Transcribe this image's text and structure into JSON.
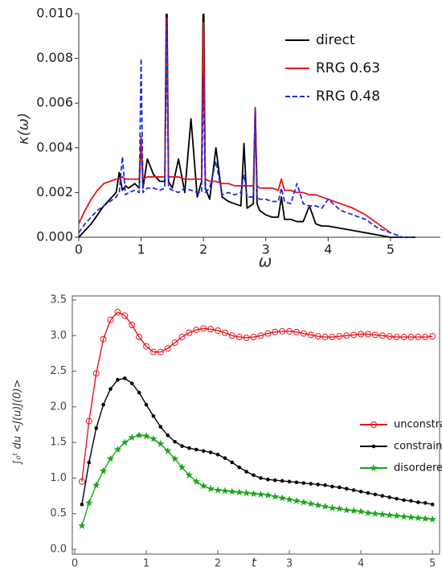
{
  "chart_data": [
    {
      "type": "line",
      "x_label": "ω",
      "y_label": "κ(ω)",
      "xlim": [
        0,
        5.8
      ],
      "ylim": [
        0,
        0.01
      ],
      "xticks": [
        0,
        1,
        2,
        3,
        4,
        5
      ],
      "yticks": [
        {
          "value": 0,
          "label": "0.000"
        },
        {
          "value": 0.002,
          "label": "0.002"
        },
        {
          "value": 0.004,
          "label": "0.004"
        },
        {
          "value": 0.006,
          "label": "0.006"
        },
        {
          "value": 0.008,
          "label": "0.008"
        },
        {
          "value": 0.01,
          "label": "0.010"
        }
      ],
      "frame": false,
      "legend": "top-right",
      "x": [
        0,
        0.1,
        0.2,
        0.3,
        0.4,
        0.5,
        0.6,
        0.65,
        0.7,
        0.75,
        0.8,
        0.9,
        0.97,
        1.0,
        1.03,
        1.1,
        1.2,
        1.3,
        1.38,
        1.41,
        1.44,
        1.5,
        1.6,
        1.7,
        1.8,
        1.9,
        1.97,
        2.0,
        2.03,
        2.1,
        2.2,
        2.3,
        2.4,
        2.5,
        2.6,
        2.65,
        2.7,
        2.8,
        2.83,
        2.86,
        2.9,
        3.0,
        3.1,
        3.2,
        3.25,
        3.3,
        3.4,
        3.5,
        3.6,
        3.7,
        3.8,
        3.9,
        4.0,
        4.2,
        4.4,
        4.6,
        4.8,
        5.0,
        5.2,
        5.4
      ],
      "series": [
        {
          "name": "direct",
          "color": "#000000",
          "dash": false,
          "values": [
            0,
            0.0003,
            0.0006,
            0.001,
            0.0014,
            0.0017,
            0.002,
            0.0029,
            0.0021,
            0.0023,
            0.0022,
            0.0024,
            0.0022,
            0.0045,
            0.0022,
            0.0035,
            0.0028,
            0.0025,
            0.0025,
            0.012,
            0.0025,
            0.0022,
            0.0035,
            0.002,
            0.0053,
            0.0018,
            0.0025,
            0.012,
            0.0022,
            0.0017,
            0.004,
            0.0018,
            0.0016,
            0.0015,
            0.0014,
            0.0042,
            0.0013,
            0.0015,
            0.0058,
            0.0015,
            0.0012,
            0.001,
            0.0009,
            0.0009,
            0.0018,
            0.0008,
            0.0008,
            0.0007,
            0.0007,
            0.0014,
            0.0006,
            0.0005,
            0.0005,
            0.0004,
            0.0003,
            0.0002,
            0.0001,
            0,
            0,
            0
          ]
        },
        {
          "name": "RRG 0.63",
          "color": "#e8141b",
          "dash": false,
          "values": [
            0.0006,
            0.0012,
            0.0017,
            0.0021,
            0.0024,
            0.0025,
            0.0026,
            0.0026,
            0.0027,
            0.0026,
            0.0026,
            0.0026,
            0.0026,
            0.0045,
            0.0026,
            0.0027,
            0.0027,
            0.0027,
            0.0027,
            0.0098,
            0.0027,
            0.0027,
            0.0027,
            0.0026,
            0.0026,
            0.0026,
            0.0026,
            0.0096,
            0.0026,
            0.0025,
            0.0025,
            0.0024,
            0.0024,
            0.0023,
            0.0023,
            0.0023,
            0.0023,
            0.0023,
            0.0058,
            0.0023,
            0.0022,
            0.0022,
            0.0022,
            0.0021,
            0.0026,
            0.0021,
            0.0021,
            0.002,
            0.002,
            0.0019,
            0.0019,
            0.0018,
            0.0017,
            0.0015,
            0.0013,
            0.001,
            0.0006,
            0.0002,
            null,
            null
          ]
        },
        {
          "name": "RRG 0.48",
          "color": "#1f2fe0",
          "dash": true,
          "values": [
            0.0002,
            0.0006,
            0.0009,
            0.0012,
            0.0014,
            0.0016,
            0.0018,
            0.002,
            0.0036,
            0.0019,
            0.002,
            0.0021,
            0.002,
            0.008,
            0.002,
            0.0022,
            0.0022,
            0.0021,
            0.0022,
            0.0095,
            0.0022,
            0.0021,
            0.002,
            0.0022,
            0.0021,
            0.002,
            0.002,
            0.0072,
            0.002,
            0.0022,
            0.0034,
            0.0019,
            0.002,
            0.0019,
            0.002,
            0.0028,
            0.0018,
            0.0018,
            0.0057,
            0.0018,
            0.0017,
            0.0017,
            0.0016,
            0.0016,
            0.0022,
            0.0016,
            0.0015,
            0.0024,
            0.0015,
            0.0014,
            0.0014,
            0.0013,
            0.0017,
            0.0012,
            0.001,
            0.0008,
            0.0004,
            0.0002,
            0,
            0
          ]
        }
      ]
    },
    {
      "type": "line",
      "x_label": "t",
      "y_label": "∫₀ᵗ du <J(u)J(0)>",
      "xlim": [
        0,
        5.1
      ],
      "ylim": [
        0,
        3.5
      ],
      "xticks": [
        0,
        1,
        2,
        3,
        4,
        5
      ],
      "yticks": [
        {
          "value": 0,
          "label": "0.0"
        },
        0.5,
        {
          "value": 1,
          "label": "1.0"
        },
        1.5,
        {
          "value": 2,
          "label": "2.0"
        },
        2.5,
        {
          "value": 3,
          "label": "3.0"
        },
        3.5
      ],
      "frame": true,
      "legend": "center-right",
      "x": [
        0.1,
        0.2,
        0.3,
        0.4,
        0.5,
        0.6,
        0.7,
        0.8,
        0.9,
        1.0,
        1.1,
        1.2,
        1.3,
        1.4,
        1.5,
        1.6,
        1.7,
        1.8,
        1.9,
        2.0,
        2.1,
        2.2,
        2.3,
        2.4,
        2.5,
        2.6,
        2.7,
        2.8,
        2.9,
        3.0,
        3.1,
        3.2,
        3.3,
        3.4,
        3.5,
        3.6,
        3.7,
        3.8,
        3.9,
        4.0,
        4.1,
        4.2,
        4.3,
        4.4,
        4.5,
        4.6,
        4.7,
        4.8,
        4.9,
        5.0
      ],
      "series": [
        {
          "name": "unconstrained",
          "color": "#e8141b",
          "marker": "open-circle",
          "values": [
            0.95,
            1.8,
            2.47,
            2.95,
            3.22,
            3.33,
            3.28,
            3.15,
            2.98,
            2.85,
            2.77,
            2.77,
            2.82,
            2.9,
            2.98,
            3.04,
            3.08,
            3.1,
            3.09,
            3.07,
            3.04,
            3.0,
            2.98,
            2.97,
            2.98,
            3.0,
            3.03,
            3.05,
            3.06,
            3.06,
            3.05,
            3.03,
            3.01,
            2.99,
            2.98,
            2.98,
            2.99,
            3.0,
            3.01,
            3.02,
            3.02,
            3.01,
            3.0,
            2.99,
            2.98,
            2.98,
            2.98,
            2.98,
            2.98,
            2.99
          ]
        },
        {
          "name": "constrained",
          "color": "#000000",
          "marker": "dot",
          "values": [
            0.63,
            1.22,
            1.7,
            2.03,
            2.25,
            2.38,
            2.4,
            2.33,
            2.2,
            2.03,
            1.87,
            1.72,
            1.6,
            1.51,
            1.45,
            1.42,
            1.4,
            1.38,
            1.36,
            1.33,
            1.28,
            1.22,
            1.15,
            1.09,
            1.04,
            1.0,
            0.98,
            0.97,
            0.96,
            0.95,
            0.94,
            0.93,
            0.92,
            0.91,
            0.9,
            0.88,
            0.87,
            0.85,
            0.83,
            0.81,
            0.79,
            0.77,
            0.75,
            0.73,
            0.71,
            0.69,
            0.68,
            0.66,
            0.65,
            0.63
          ]
        },
        {
          "name": "disordered",
          "color": "#1aa51a",
          "marker": "star",
          "values": [
            0.33,
            0.65,
            0.9,
            1.1,
            1.27,
            1.4,
            1.5,
            1.57,
            1.6,
            1.59,
            1.55,
            1.48,
            1.38,
            1.27,
            1.15,
            1.04,
            0.95,
            0.89,
            0.85,
            0.83,
            0.82,
            0.81,
            0.8,
            0.79,
            0.78,
            0.77,
            0.76,
            0.74,
            0.72,
            0.7,
            0.68,
            0.66,
            0.64,
            0.62,
            0.6,
            0.58,
            0.57,
            0.55,
            0.54,
            0.53,
            0.51,
            0.5,
            0.49,
            0.48,
            0.47,
            0.46,
            0.45,
            0.44,
            0.43,
            0.42
          ]
        }
      ]
    }
  ]
}
